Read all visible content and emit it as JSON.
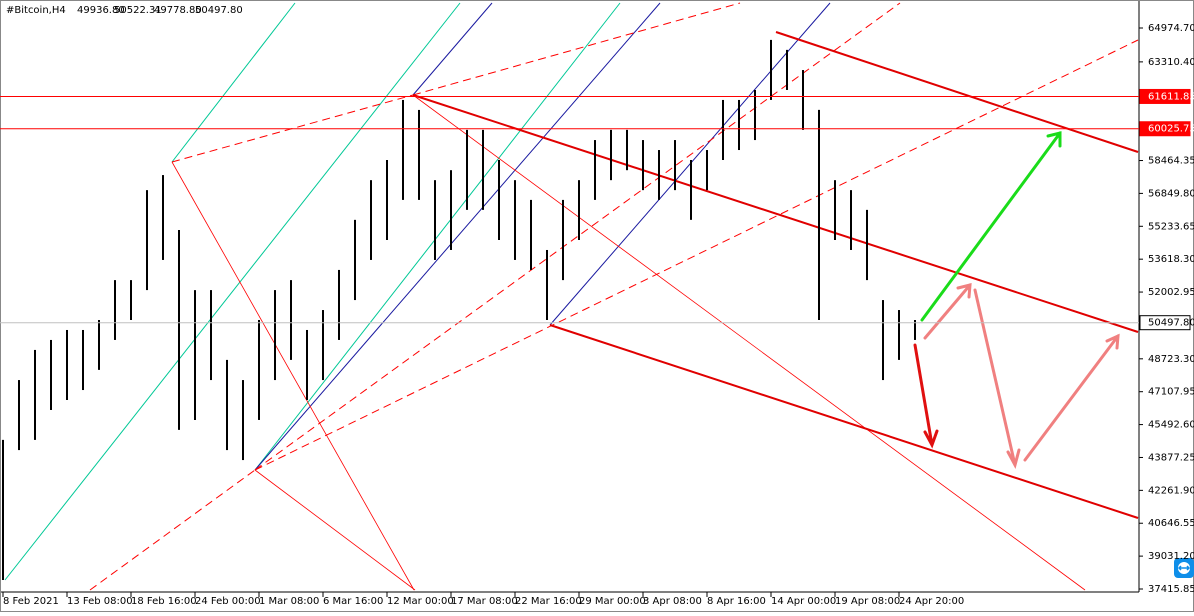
{
  "header": {
    "symbol": "#Bitcoin,H4",
    "open": "49936.80",
    "high": "50522.31",
    "low": "49778.80",
    "close": "50497.80"
  },
  "chart_data": {
    "type": "candlestick",
    "color": "#000000",
    "x": [
      0,
      8,
      16,
      24,
      32,
      40,
      48,
      56,
      64,
      72,
      80,
      88,
      96,
      104,
      112,
      120,
      128,
      136,
      144,
      152,
      160,
      168,
      176,
      184,
      192,
      200,
      208,
      216,
      224,
      232,
      240,
      248,
      256,
      264,
      272,
      280,
      288,
      296,
      304,
      312,
      320,
      328,
      336,
      344,
      352,
      360,
      368,
      376,
      384,
      392,
      400,
      408,
      416,
      424,
      432,
      440,
      448,
      456
    ],
    "series": [
      {
        "name": "#Bitcoin,H4",
        "high": [
          44740,
          47680,
          49160,
          49650,
          50140,
          50140,
          50630,
          52590,
          52590,
          57010,
          57750,
          55050,
          52100,
          52100,
          48670,
          47680,
          50630,
          52100,
          52590,
          50140,
          51120,
          53090,
          55550,
          57500,
          58490,
          61440,
          60950,
          57500,
          57990,
          59970,
          59970,
          58490,
          57500,
          56530,
          54070,
          56530,
          57500,
          59470,
          59970,
          59970,
          59470,
          58980,
          59470,
          58490,
          58980,
          61440,
          61440,
          61930,
          64390,
          63900,
          62910,
          60950,
          57500,
          57010,
          56040,
          51610,
          51120,
          50630
        ],
        "low": [
          37860,
          44240,
          44740,
          46210,
          46700,
          47190,
          48180,
          49650,
          50630,
          52100,
          53580,
          45230,
          45720,
          47680,
          44240,
          43750,
          45720,
          47680,
          48670,
          46700,
          47680,
          49650,
          51610,
          53580,
          54560,
          56530,
          56530,
          53580,
          54070,
          56040,
          56040,
          54560,
          53580,
          53090,
          50630,
          52590,
          54560,
          56530,
          57500,
          57990,
          57010,
          56530,
          57010,
          55550,
          57010,
          58490,
          58980,
          59470,
          61440,
          61930,
          59970,
          50630,
          54560,
          54070,
          52590,
          47680,
          48670,
          49650
        ]
      }
    ],
    "xlim": [
      0,
      568
    ],
    "xticks": [
      {
        "value": 0,
        "label": "8 Feb 2021"
      },
      {
        "value": 32,
        "label": "13 Feb 08:00"
      },
      {
        "value": 64,
        "label": "18 Feb 16:00"
      },
      {
        "value": 96,
        "label": "24 Feb 00:00"
      },
      {
        "value": 128,
        "label": "1 Mar 08:00"
      },
      {
        "value": 160,
        "label": "6 Mar 16:00"
      },
      {
        "value": 192,
        "label": "12 Mar 00:00"
      },
      {
        "value": 224,
        "label": "17 Mar 08:00"
      },
      {
        "value": 256,
        "label": "22 Mar 16:00"
      },
      {
        "value": 288,
        "label": "29 Mar 00:00"
      },
      {
        "value": 320,
        "label": "3 Apr 08:00"
      },
      {
        "value": 352,
        "label": "8 Apr 16:00"
      },
      {
        "value": 384,
        "label": "14 Apr 00:00"
      },
      {
        "value": 416,
        "label": "19 Apr 08:00"
      },
      {
        "value": 448,
        "label": "24 Apr 20:00"
      }
    ],
    "ylim": [
      37415.85,
      64974.7
    ],
    "yticks": [
      {
        "value": 64974.7,
        "label": "64974.70"
      },
      {
        "value": 63310.4,
        "label": "63310.40"
      },
      {
        "value": 58464.35,
        "label": "58464.35"
      },
      {
        "value": 56849.8,
        "label": "56849.80"
      },
      {
        "value": 55233.65,
        "label": "55233.65"
      },
      {
        "value": 53618.3,
        "label": "53618.30"
      },
      {
        "value": 52002.95,
        "label": "52002.95"
      },
      {
        "value": 48723.3,
        "label": "48723.30"
      },
      {
        "value": 47107.95,
        "label": "47107.95"
      },
      {
        "value": 45492.6,
        "label": "45492.60"
      },
      {
        "value": 43877.25,
        "label": "43877.25"
      },
      {
        "value": 42261.9,
        "label": "42261.90"
      },
      {
        "value": 40646.55,
        "label": "40646.55"
      },
      {
        "value": 39031.2,
        "label": "39031.20"
      },
      {
        "value": 37415.85,
        "label": "37415.85"
      }
    ],
    "price_lines": [
      {
        "price": 61611.85,
        "color": "#ff0000"
      },
      {
        "price": 60025.75,
        "color": "#ff0000"
      },
      {
        "price": {
          "value": 50497.8,
          "label": "50497.80"
        },
        "color": "#c0c0c0"
      }
    ]
  }
}
